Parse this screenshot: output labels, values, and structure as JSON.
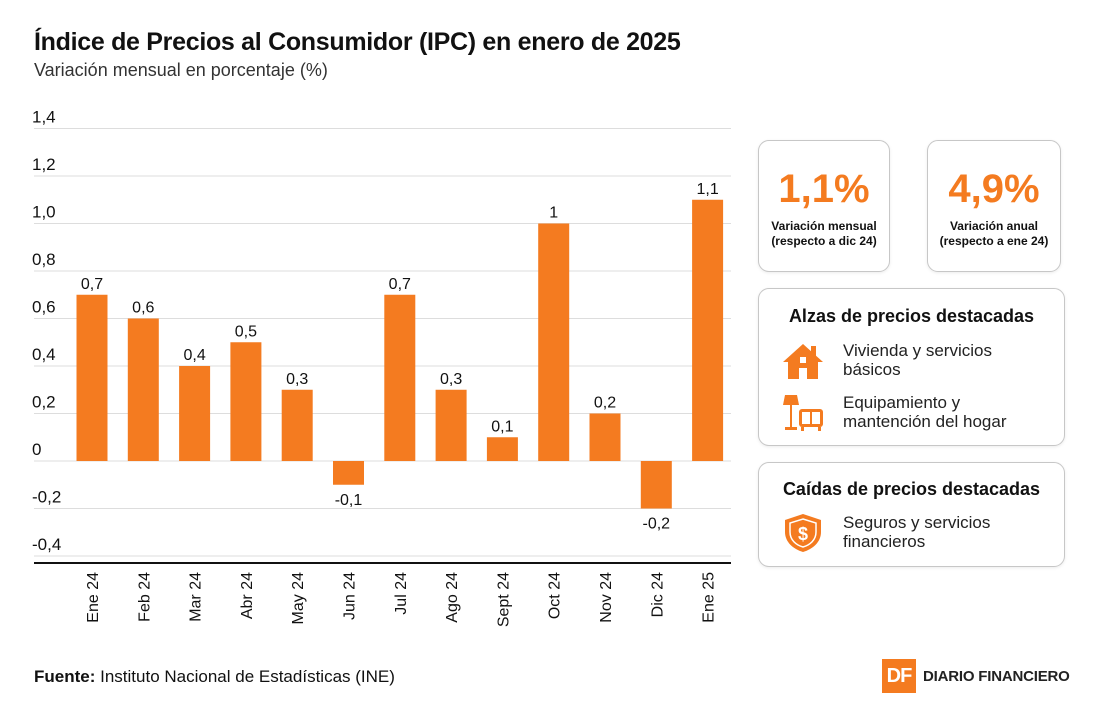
{
  "title": "Índice de Precios al Consumidor (IPC) en enero de 2025",
  "subtitle": "Variación mensual en porcentaje (%)",
  "colors": {
    "accent": "#f47b20",
    "grid": "#dddddd",
    "text": "#111111"
  },
  "chart_data": {
    "type": "bar",
    "categories": [
      "Ene 24",
      "Feb 24",
      "Mar 24",
      "Abr 24",
      "May 24",
      "Jun 24",
      "Jul 24",
      "Ago 24",
      "Sept 24",
      "Oct 24",
      "Nov 24",
      "Dic 24",
      "Ene 25"
    ],
    "values": [
      0.7,
      0.6,
      0.4,
      0.5,
      0.3,
      -0.1,
      0.7,
      0.3,
      0.1,
      1.0,
      0.2,
      -0.2,
      1.1
    ],
    "value_labels": [
      "0,7",
      "0,6",
      "0,4",
      "0,5",
      "0,3",
      "-0,1",
      "0,7",
      "0,3",
      "0,1",
      "1",
      "0,2",
      "-0,2",
      "1,1"
    ],
    "yticks": [
      1.4,
      1.2,
      1.0,
      0.8,
      0.6,
      0.4,
      0.2,
      0,
      -0.2,
      -0.4
    ],
    "ytick_labels": [
      "1,4",
      "1,2",
      "1,0",
      "0,8",
      "0,6",
      "0,4",
      "0,2",
      "0",
      "-0,2",
      "-0,4"
    ],
    "ylim": [
      -0.45,
      1.45
    ],
    "title": "Índice de Precios al Consumidor (IPC) en enero de 2025",
    "ylabel": "Variación mensual en porcentaje (%)",
    "xlabel": "",
    "grid": true
  },
  "kpis": [
    {
      "value": "1,1%",
      "label_line1": "Variación mensual",
      "label_line2": "(respecto a dic 24)"
    },
    {
      "value": "4,9%",
      "label_line1": "Variación anual",
      "label_line2": "(respecto a ene 24)"
    }
  ],
  "alzas": {
    "title": "Alzas de precios destacadas",
    "items": [
      {
        "icon": "house-icon",
        "line1": "Vivienda y servicios",
        "line2": "básicos"
      },
      {
        "icon": "furniture-icon",
        "line1": "Equipamiento y",
        "line2": "mantención del hogar"
      }
    ]
  },
  "caidas": {
    "title": "Caídas de precios destacadas",
    "items": [
      {
        "icon": "shield-dollar-icon",
        "line1": "Seguros y servicios",
        "line2": "financieros"
      }
    ]
  },
  "source": {
    "label": "Fuente:",
    "text": " Instituto Nacional de Estadísticas (INE)"
  },
  "logo": {
    "mark": "DF",
    "name": "DIARIO FINANCIERO"
  }
}
